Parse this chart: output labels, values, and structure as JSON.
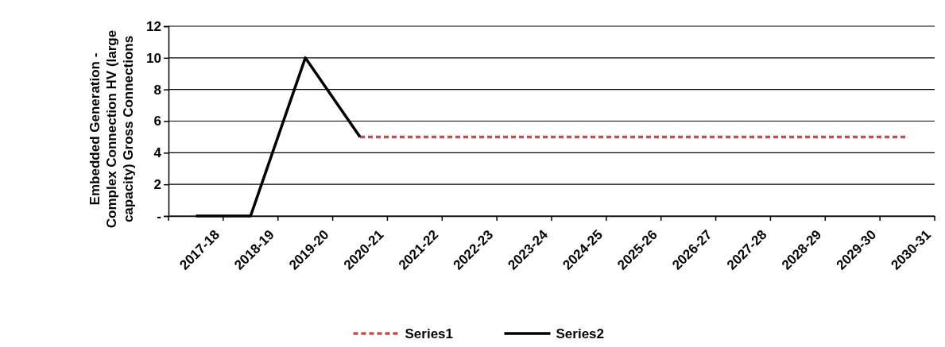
{
  "chart_data": {
    "type": "line",
    "ylabel": "Embedded Generation - Complex Connection HV (large capacity)  Gross Connections",
    "categories": [
      "2017-18",
      "2018-19",
      "2019-20",
      "2020-21",
      "2021-22",
      "2022-23",
      "2023-24",
      "2024-25",
      "2025-26",
      "2026-27",
      "2027-28",
      "2028-29",
      "2029-30",
      "2030-31"
    ],
    "series": [
      {
        "name": "Series1",
        "color": "#c0504d",
        "line_style": "dashed",
        "values": [
          null,
          null,
          null,
          5,
          5,
          5,
          5,
          5,
          5,
          5,
          5,
          5,
          5,
          5
        ]
      },
      {
        "name": "Series2",
        "color": "#000000",
        "line_style": "solid",
        "values": [
          0,
          0,
          10,
          5,
          null,
          null,
          null,
          null,
          null,
          null,
          null,
          null,
          null,
          null
        ]
      }
    ],
    "ylim": [
      0,
      12
    ],
    "yticks": [
      {
        "value": 0,
        "label": "-"
      },
      2,
      4,
      6,
      8,
      10,
      12
    ],
    "grid": "y",
    "legend": "bottom"
  }
}
